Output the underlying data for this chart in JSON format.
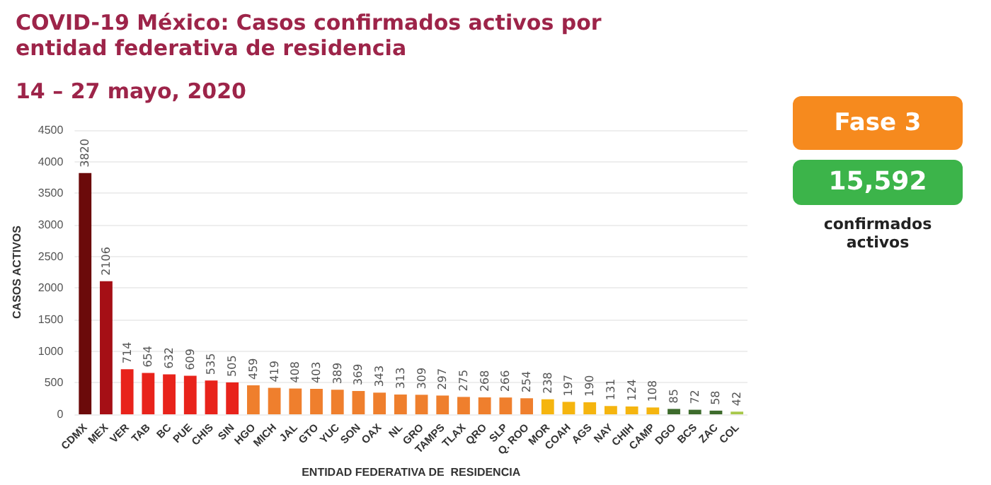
{
  "chart_data": {
    "type": "bar",
    "title": "COVID-19 México: Casos confirmados activos por entidad federativa de residencia",
    "subtitle": "14 – 27 mayo, 2020",
    "xlabel": "ENTIDAD FEDERATIVA DE  RESIDENCIA",
    "ylabel": "CASOS ACTIVOS",
    "categories": [
      "CDMX",
      "MEX",
      "VER",
      "TAB",
      "BC",
      "PUE",
      "CHIS",
      "SIN",
      "HGO",
      "MICH",
      "JAL",
      "GTO",
      "YUC",
      "SON",
      "OAX",
      "NL",
      "GRO",
      "TAMPS",
      "TLAX",
      "QRO",
      "SLP",
      "Q. ROO",
      "MOR",
      "COAH",
      "AGS",
      "NAY",
      "CHIH",
      "CAMP",
      "DGO",
      "BCS",
      "ZAC",
      "COL"
    ],
    "values": [
      3820,
      2106,
      714,
      654,
      632,
      609,
      535,
      505,
      459,
      419,
      408,
      403,
      389,
      369,
      343,
      313,
      309,
      297,
      275,
      268,
      266,
      254,
      238,
      197,
      190,
      131,
      124,
      108,
      85,
      72,
      58,
      42
    ],
    "colors": [
      "#6b0a0a",
      "#a50f15",
      "#e8231b",
      "#e8231b",
      "#e8231b",
      "#e8231b",
      "#e8231b",
      "#e8231b",
      "#ef7f2d",
      "#ef7f2d",
      "#ef7f2d",
      "#ef7f2d",
      "#ef7f2d",
      "#ef7f2d",
      "#ef7f2d",
      "#ef7f2d",
      "#ef7f2d",
      "#ef7f2d",
      "#ef7f2d",
      "#ef7f2d",
      "#ef7f2d",
      "#ef7f2d",
      "#f5b50f",
      "#f5b50f",
      "#f5b50f",
      "#f5b50f",
      "#f5b50f",
      "#f5b50f",
      "#3d6b2c",
      "#3d6b2c",
      "#3d6b2c",
      "#a8c84a"
    ],
    "ylim": [
      0,
      4500
    ],
    "yticks": [
      0,
      500,
      1000,
      1500,
      2000,
      2500,
      3000,
      3500,
      4000,
      4500
    ],
    "grid": "y",
    "data_labels": true,
    "annotations": [
      "Fase 3",
      "15,592",
      "confirmados activos"
    ]
  }
}
